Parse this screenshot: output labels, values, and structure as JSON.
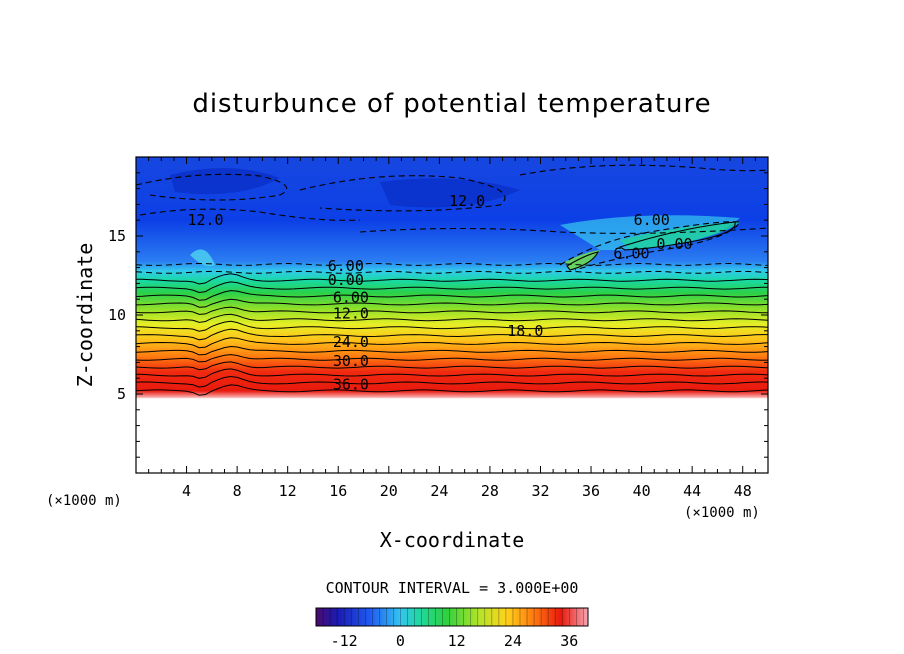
{
  "chart_data": {
    "type": "heatmap",
    "title": "disturbunce of potential temperature",
    "xlabel": "X-coordinate",
    "ylabel": "Z-coordinate",
    "x_unit": "(×1000 m)",
    "y_unit": "(×1000 m)",
    "xlim": [
      0,
      50
    ],
    "ylim": [
      0,
      20
    ],
    "x_ticks": [
      4,
      8,
      12,
      16,
      20,
      24,
      28,
      32,
      36,
      40,
      44,
      48
    ],
    "y_ticks": [
      5,
      10,
      15
    ],
    "contour_interval_label": "CONTOUR INTERVAL = 3.000E+00",
    "colorbar": {
      "range": [
        -18,
        40
      ],
      "ticks": [
        -12,
        0,
        12,
        24,
        36
      ]
    },
    "contour_labels": [
      {
        "text": "12.0",
        "x": 5.5,
        "z": 16.0
      },
      {
        "text": "12.0",
        "x": 26.2,
        "z": 17.2
      },
      {
        "text": "6.00",
        "x": 40.8,
        "z": 16.0
      },
      {
        "text": "6.00",
        "x": 16.6,
        "z": 13.1
      },
      {
        "text": "0.00",
        "x": 16.6,
        "z": 12.2
      },
      {
        "text": "6.00",
        "x": 17.0,
        "z": 11.1
      },
      {
        "text": "12.0",
        "x": 17.0,
        "z": 10.1
      },
      {
        "text": "18.0",
        "x": 30.8,
        "z": 9.0
      },
      {
        "text": "24.0",
        "x": 17.0,
        "z": 8.3
      },
      {
        "text": "30.0",
        "x": 17.0,
        "z": 7.1
      },
      {
        "text": "36.0",
        "x": 17.0,
        "z": 5.6
      },
      {
        "text": "6.00",
        "x": 39.2,
        "z": 13.9
      },
      {
        "text": "0.00",
        "x": 42.6,
        "z": 14.5
      }
    ],
    "field_description_levels": [
      {
        "z": 18.5,
        "value": -12
      },
      {
        "z": 16.0,
        "value": -9
      },
      {
        "z": 13.5,
        "value": -3
      },
      {
        "z": 12.5,
        "value": 0
      },
      {
        "z": 11.0,
        "value": 6
      },
      {
        "z": 10.0,
        "value": 12
      },
      {
        "z": 9.0,
        "value": 18
      },
      {
        "z": 8.0,
        "value": 24
      },
      {
        "z": 7.0,
        "value": 30
      },
      {
        "z": 5.5,
        "value": 36
      }
    ]
  }
}
